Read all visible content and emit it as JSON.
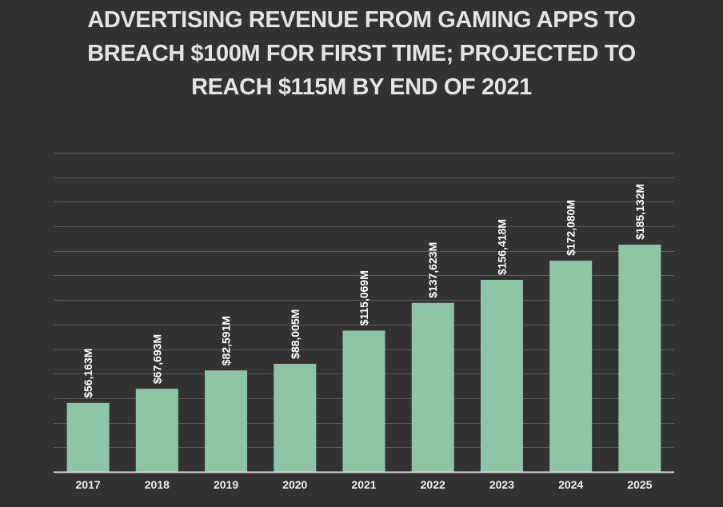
{
  "chart_data": {
    "type": "bar",
    "title": "ADVERTISING REVENUE FROM GAMING APPS TO BREACH $100M FOR FIRST TIME; PROJECTED TO REACH $115M BY END OF 2021",
    "xlabel": "",
    "ylabel": "",
    "categories": [
      "2017",
      "2018",
      "2019",
      "2020",
      "2021",
      "2022",
      "2023",
      "2024",
      "2025"
    ],
    "values": [
      56.163,
      67.693,
      82.591,
      88.005,
      115.069,
      137.623,
      156.418,
      172.08,
      185.132
    ],
    "data_labels": [
      "$56,163M",
      "$67,693M",
      "$82,591M",
      "$88,005M",
      "$115,069M",
      "$137,623M",
      "$156,418M",
      "$172,080M",
      "$185,132M"
    ],
    "ylim": [
      0,
      260
    ],
    "grid": true,
    "gridline_step": 20,
    "legend": "none",
    "colors": {
      "bar": "#8fc5a7",
      "background": "#323232",
      "gridline": "#5a5a5a",
      "axis": "#d8d8d8",
      "title": "#e4e4e4"
    }
  }
}
